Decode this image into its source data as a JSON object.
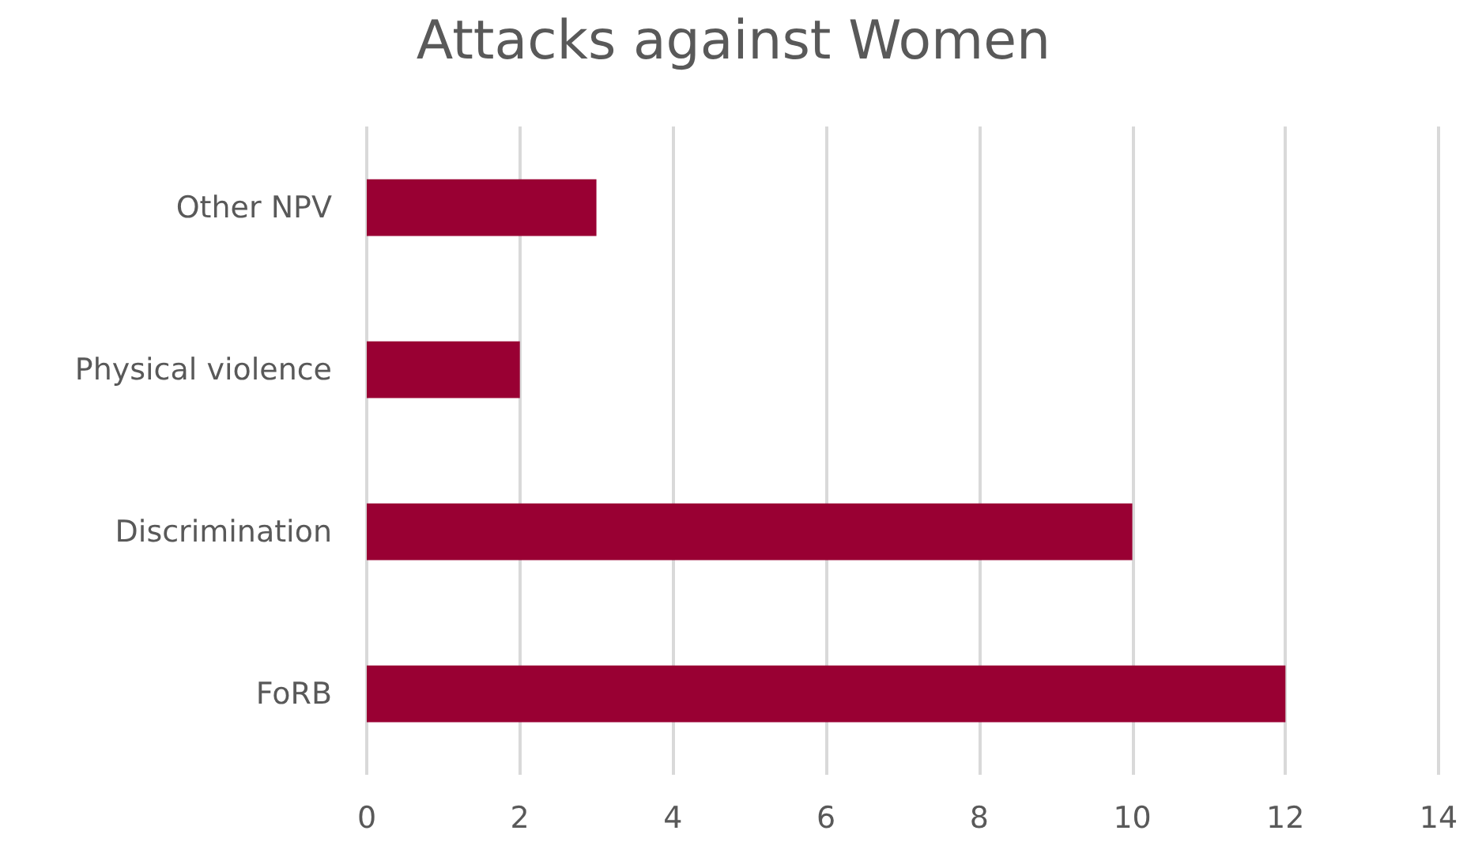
{
  "chart_data": {
    "type": "bar",
    "orientation": "horizontal",
    "title": "Attacks against Women",
    "categories": [
      "Other NPV",
      "Physical violence",
      "Discrimination",
      "FoRB"
    ],
    "values": [
      3,
      2,
      10,
      12
    ],
    "color": "#990033",
    "xlim": [
      0,
      14
    ],
    "xticks": [
      0,
      2,
      4,
      6,
      8,
      10,
      12,
      14
    ],
    "grid": "x"
  }
}
